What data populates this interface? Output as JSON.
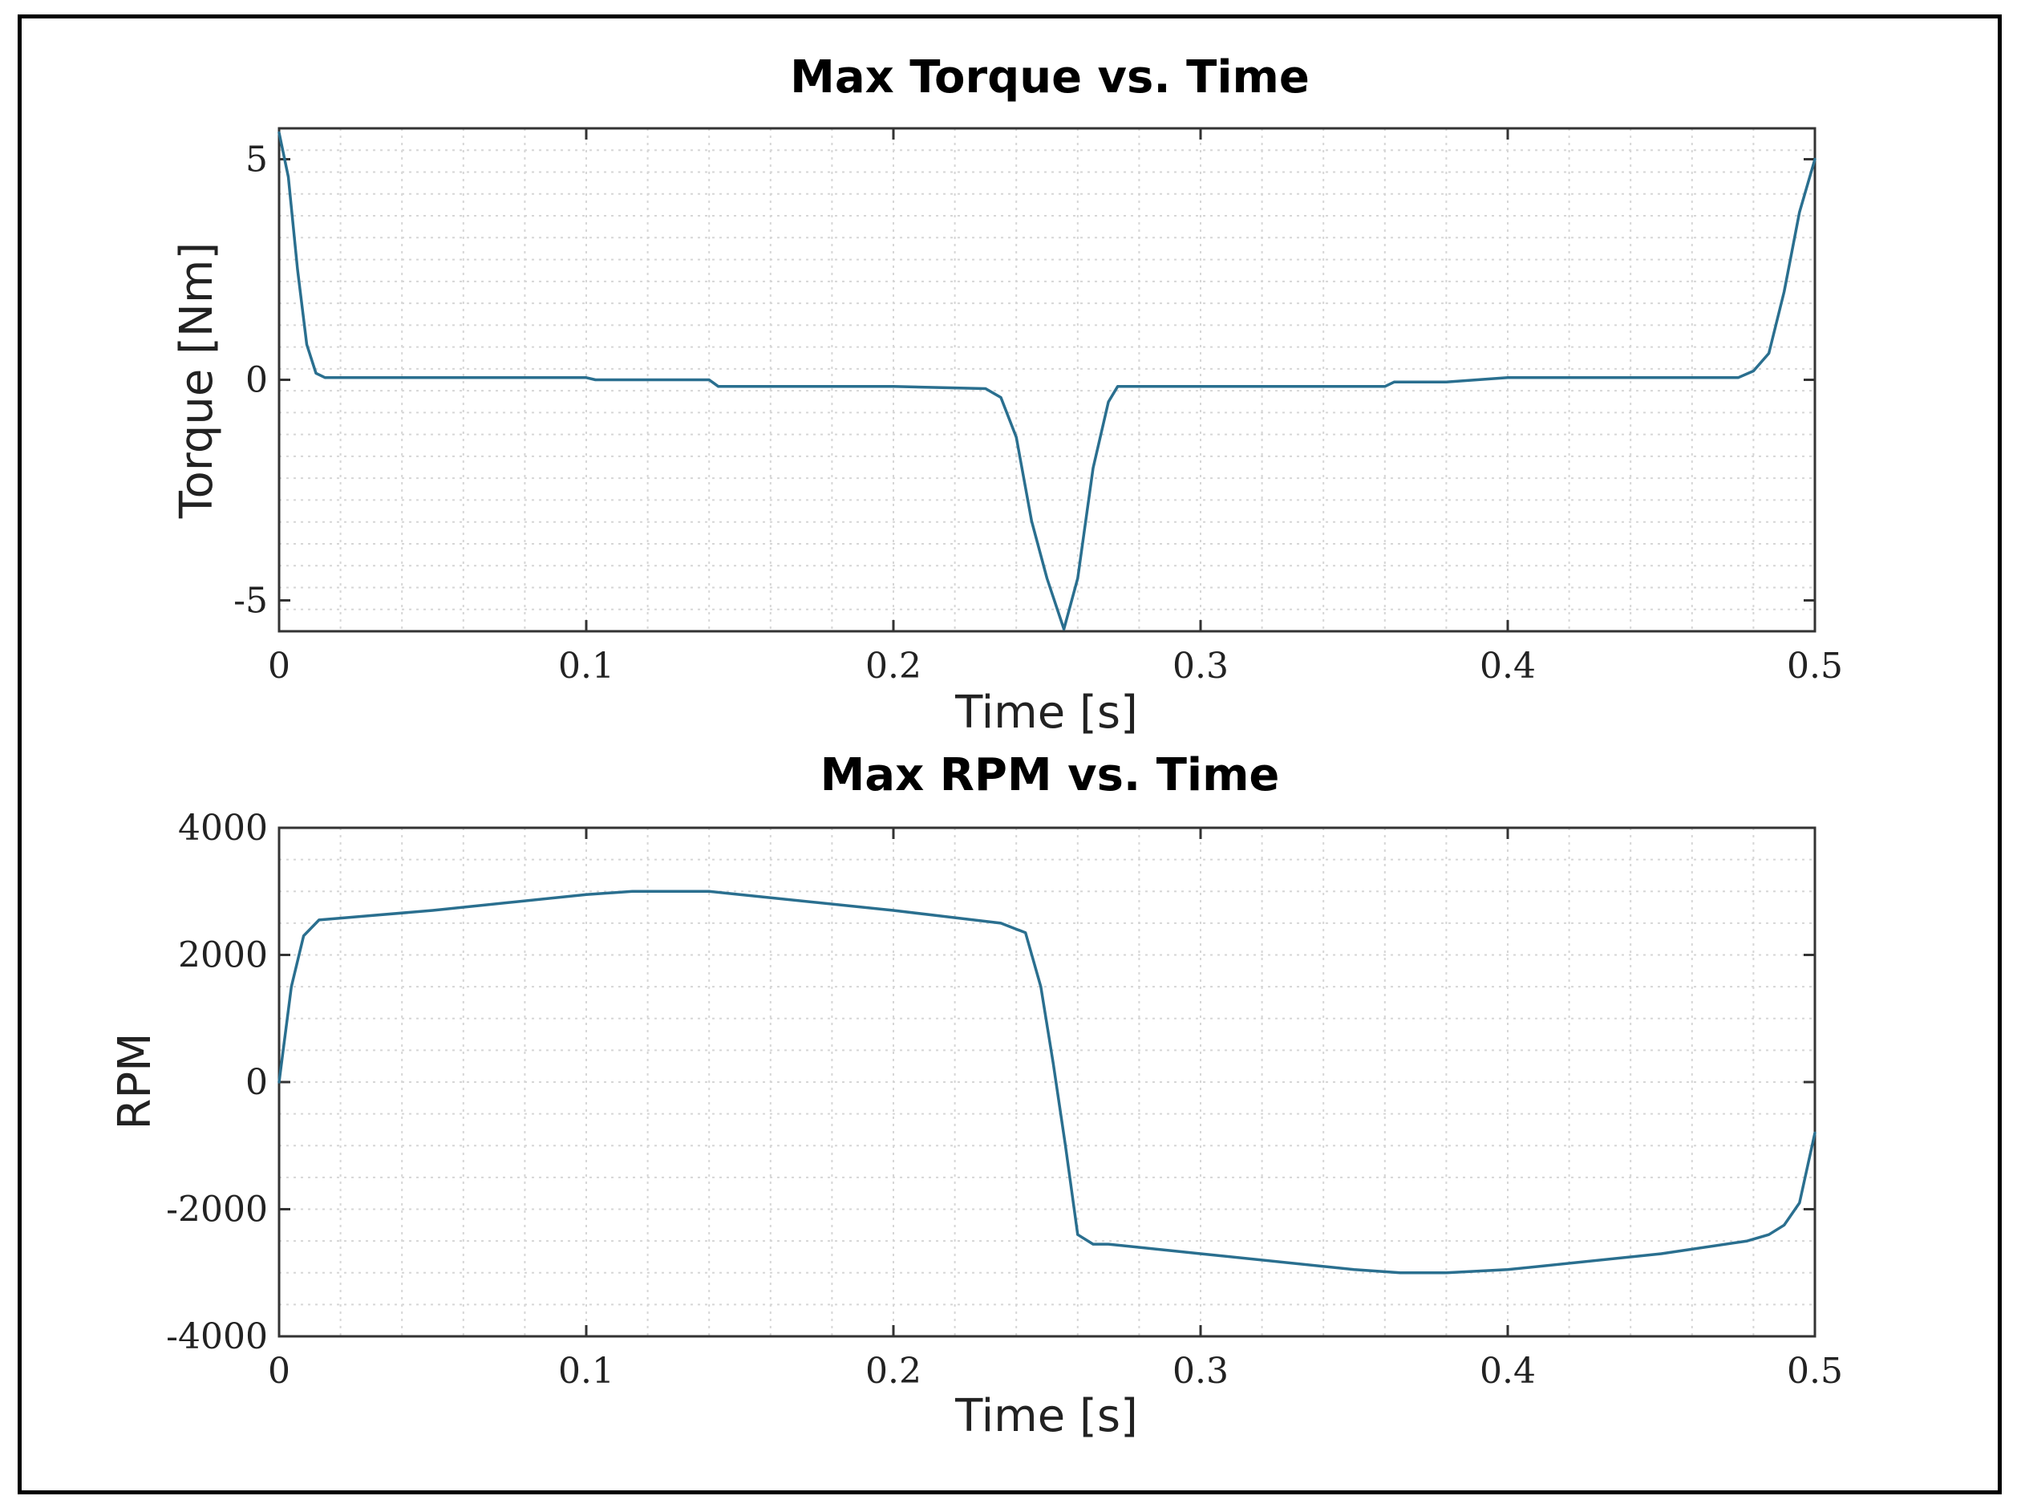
{
  "chart_data": [
    {
      "type": "line",
      "title": "Max Torque vs. Time",
      "xlabel": "Time [s]",
      "ylabel": "Torque [Nm]",
      "xlim": [
        0,
        0.5
      ],
      "ylim": [
        -5.7,
        5.7
      ],
      "xticks": [
        0,
        0.1,
        0.2,
        0.3,
        0.4,
        0.5
      ],
      "xtick_labels": [
        "0",
        "0.1",
        "0.2",
        "0.3",
        "0.4",
        "0.5"
      ],
      "yticks": [
        -5,
        0,
        5
      ],
      "ytick_labels": [
        "-5",
        "0",
        "5"
      ],
      "grid": true,
      "minor_grid": true,
      "line_color": "#2a6f8f",
      "series": [
        {
          "x": [
            0,
            0.003,
            0.006,
            0.009,
            0.012,
            0.015,
            0.05,
            0.1,
            0.103,
            0.14,
            0.143,
            0.2,
            0.23,
            0.235,
            0.24,
            0.245,
            0.25,
            0.2555,
            0.26,
            0.265,
            0.27,
            0.273,
            0.3,
            0.36,
            0.363,
            0.38,
            0.4,
            0.45,
            0.475,
            0.48,
            0.485,
            0.49,
            0.495,
            0.5
          ],
          "y": [
            5.6,
            4.6,
            2.5,
            0.8,
            0.15,
            0.05,
            0.05,
            0.05,
            0.0,
            0.0,
            -0.15,
            -0.15,
            -0.2,
            -0.4,
            -1.3,
            -3.2,
            -4.5,
            -5.65,
            -4.5,
            -2.0,
            -0.5,
            -0.15,
            -0.15,
            -0.15,
            -0.05,
            -0.05,
            0.05,
            0.05,
            0.05,
            0.2,
            0.6,
            2.0,
            3.8,
            5.0
          ]
        }
      ]
    },
    {
      "type": "line",
      "title": "Max RPM vs. Time",
      "xlabel": "Time [s]",
      "ylabel": "RPM",
      "xlim": [
        0,
        0.5
      ],
      "ylim": [
        -4000,
        4000
      ],
      "xticks": [
        0,
        0.1,
        0.2,
        0.3,
        0.4,
        0.5
      ],
      "xtick_labels": [
        "0",
        "0.1",
        "0.2",
        "0.3",
        "0.4",
        "0.5"
      ],
      "yticks": [
        -4000,
        -2000,
        0,
        2000,
        4000
      ],
      "ytick_labels": [
        "-4000",
        "-2000",
        "0",
        "2000",
        "4000"
      ],
      "grid": true,
      "minor_grid": true,
      "line_color": "#2a6f8f",
      "series": [
        {
          "x": [
            0,
            0.004,
            0.008,
            0.013,
            0.05,
            0.1,
            0.115,
            0.13,
            0.14,
            0.15,
            0.2,
            0.235,
            0.243,
            0.248,
            0.252,
            0.256,
            0.26,
            0.265,
            0.27,
            0.3,
            0.35,
            0.365,
            0.38,
            0.4,
            0.45,
            0.478,
            0.485,
            0.49,
            0.495,
            0.5
          ],
          "y": [
            0,
            1500,
            2300,
            2550,
            2700,
            2950,
            3000,
            3000,
            3000,
            2950,
            2700,
            2500,
            2350,
            1500,
            300,
            -1000,
            -2400,
            -2550,
            -2550,
            -2700,
            -2950,
            -3000,
            -3000,
            -2950,
            -2700,
            -2500,
            -2400,
            -2250,
            -1900,
            -800
          ]
        }
      ]
    }
  ]
}
